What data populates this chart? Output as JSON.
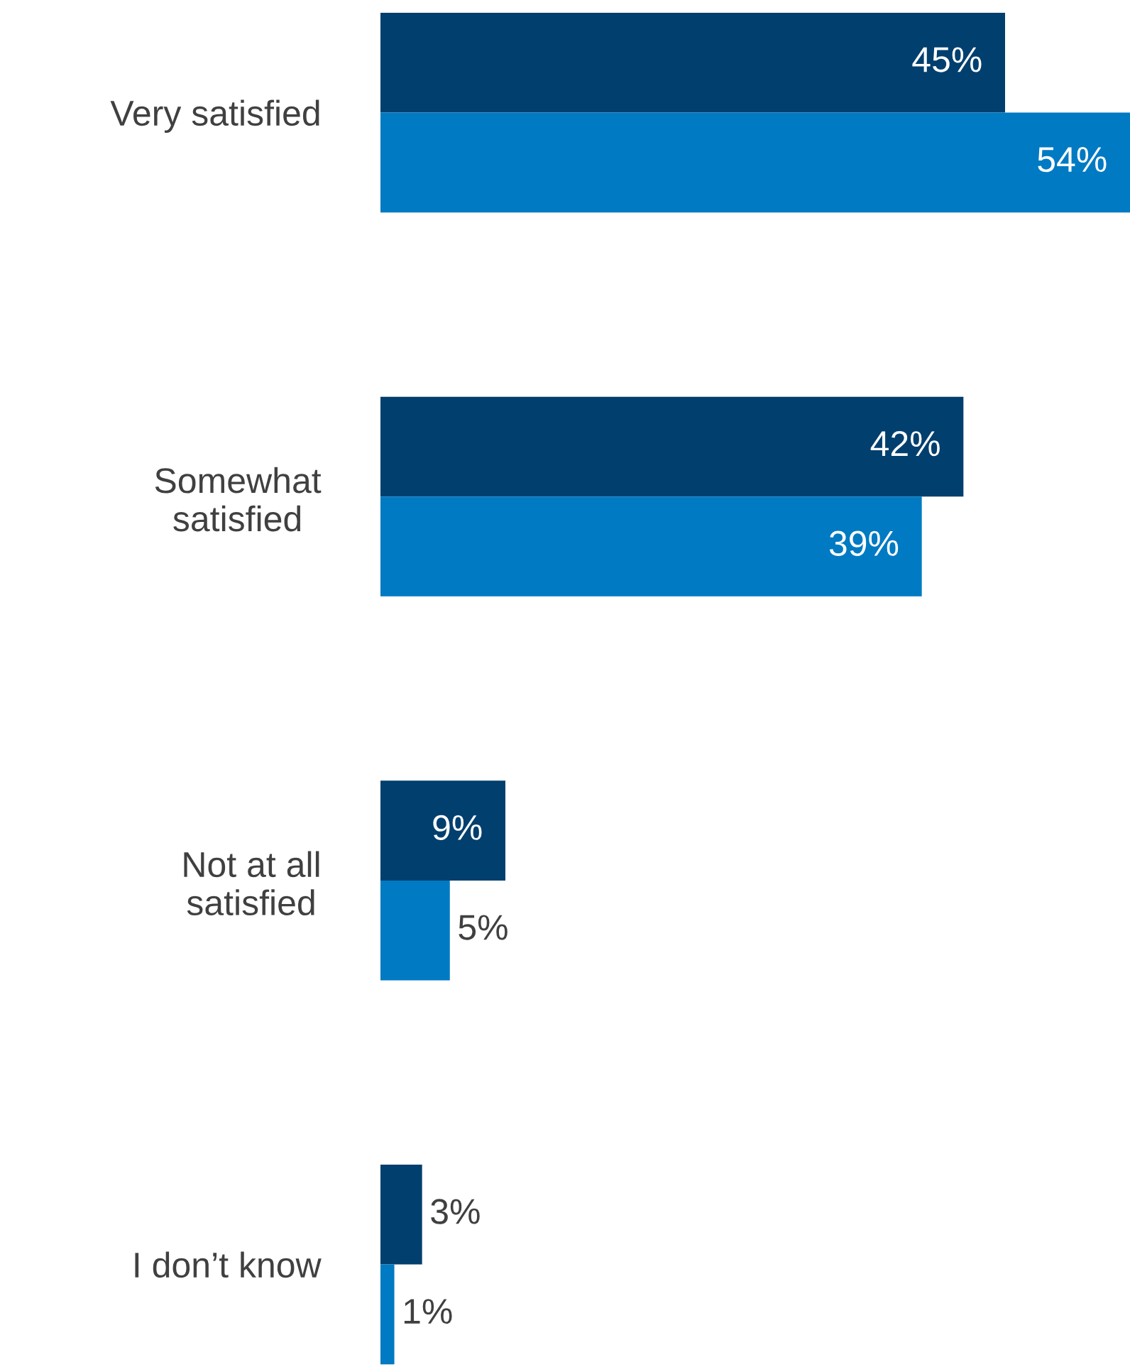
{
  "chart_data": {
    "type": "bar",
    "orientation": "horizontal",
    "categories": [
      "Very satisfied",
      "Somewhat\nsatisfied",
      "Not at all\nsatisfied",
      "I don’t know"
    ],
    "series": [
      {
        "color": "#003f6e",
        "values": [
          45,
          42,
          9,
          3
        ],
        "value_labels": [
          "45%",
          "42%",
          "9%",
          "3%"
        ]
      },
      {
        "color": "#007ac3",
        "values": [
          54,
          39,
          5,
          1
        ],
        "value_labels": [
          "54%",
          "39%",
          "5%",
          "1%"
        ]
      }
    ],
    "xlim": [
      0,
      54
    ],
    "tick_labels": "y",
    "grid": false,
    "legend": false
  }
}
